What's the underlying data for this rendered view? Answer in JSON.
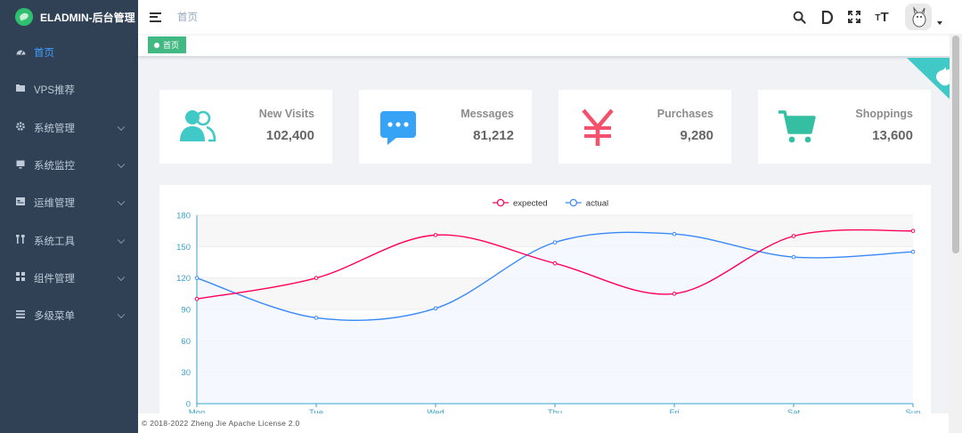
{
  "app": {
    "title": "ELADMIN-后台管理"
  },
  "sidebar": {
    "items": [
      {
        "label": "首页",
        "icon": "dashboard-icon",
        "active": true,
        "has_children": false
      },
      {
        "label": "VPS推荐",
        "icon": "server-icon",
        "active": false,
        "has_children": false
      },
      {
        "label": "系统管理",
        "icon": "gear-icon",
        "active": false,
        "has_children": true
      },
      {
        "label": "系统监控",
        "icon": "monitor-icon",
        "active": false,
        "has_children": true
      },
      {
        "label": "运维管理",
        "icon": "server-rack-icon",
        "active": false,
        "has_children": true
      },
      {
        "label": "系统工具",
        "icon": "tools-icon",
        "active": false,
        "has_children": true
      },
      {
        "label": "组件管理",
        "icon": "grid-icon",
        "active": false,
        "has_children": true
      },
      {
        "label": "多级菜单",
        "icon": "list-icon",
        "active": false,
        "has_children": true
      }
    ]
  },
  "navbar": {
    "breadcrumb": "首页",
    "size_icon_text": "T"
  },
  "tags": [
    {
      "label": "首页",
      "active": true
    }
  ],
  "cards": [
    {
      "label": "New Visits",
      "value": "102,400",
      "icon": "peoples-icon",
      "color": "#40c9c6"
    },
    {
      "label": "Messages",
      "value": "81,212",
      "icon": "message-icon",
      "color": "#36a3f7"
    },
    {
      "label": "Purchases",
      "value": "9,280",
      "icon": "money-yen-icon",
      "color": "#f4516c"
    },
    {
      "label": "Shoppings",
      "value": "13,600",
      "icon": "shopping-cart-icon",
      "color": "#34bfa3"
    }
  ],
  "chart_data": {
    "type": "line",
    "categories": [
      "Mon",
      "Tue",
      "Wed",
      "Thu",
      "Fri",
      "Sat",
      "Sun"
    ],
    "series": [
      {
        "name": "expected",
        "values": [
          100,
          120,
          161,
          134,
          105,
          160,
          165
        ],
        "color": "#ff005a"
      },
      {
        "name": "actual",
        "values": [
          120,
          82,
          91,
          154,
          162,
          140,
          145
        ],
        "color": "#3888fa"
      }
    ],
    "ylim": [
      0,
      180
    ],
    "yticks": [
      0,
      30,
      60,
      90,
      120,
      150,
      180
    ],
    "smooth": true,
    "grid": true,
    "legend_position": "top-center"
  },
  "footer": {
    "text": "© 2018-2022 Zheng Jie Apache License 2.0"
  }
}
